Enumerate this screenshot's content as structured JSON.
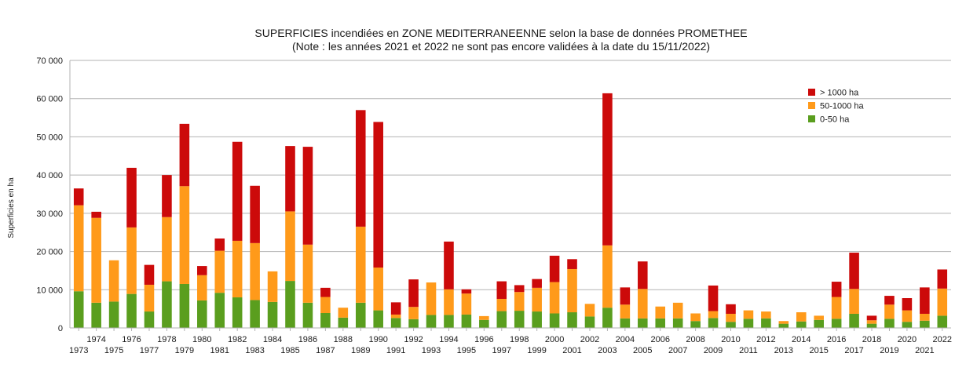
{
  "chart_data": {
    "type": "bar",
    "stacked": true,
    "title": "SUPERFICIES incendiées en ZONE MEDITERRANEENNE selon la base de données PROMETHEE",
    "subtitle": "(Note : les années 2021 et 2022 ne sont pas encore validées à la date du 15/11/2022)",
    "ylabel": "Superficies en ha",
    "xlabel": "",
    "ylim": [
      0,
      70000
    ],
    "yticks": [
      0,
      10000,
      20000,
      30000,
      40000,
      50000,
      60000,
      70000
    ],
    "ytick_labels": [
      "0",
      "10 000",
      "20 000",
      "30 000",
      "40 000",
      "50 000",
      "60 000",
      "70 000"
    ],
    "grid": true,
    "legend_position": "top-right",
    "categories": [
      "1973",
      "1974",
      "1975",
      "1976",
      "1977",
      "1978",
      "1979",
      "1980",
      "1981",
      "1982",
      "1983",
      "1984",
      "1985",
      "1986",
      "1987",
      "1988",
      "1989",
      "1990",
      "1991",
      "1992",
      "1993",
      "1994",
      "1995",
      "1996",
      "1997",
      "1998",
      "1999",
      "2000",
      "2001",
      "2002",
      "2003",
      "2004",
      "2005",
      "2006",
      "2007",
      "2008",
      "2009",
      "2010",
      "2011",
      "2012",
      "2013",
      "2014",
      "2015",
      "2016",
      "2017",
      "2018",
      "2019",
      "2020",
      "2021",
      "2022"
    ],
    "series": [
      {
        "name": "0-50 ha",
        "color": "#5a9e1e",
        "values": [
          9600,
          6600,
          6900,
          8900,
          4300,
          12200,
          11500,
          7200,
          9200,
          8000,
          7300,
          6800,
          12300,
          6600,
          3900,
          2700,
          6600,
          4600,
          2600,
          2300,
          3400,
          3400,
          3500,
          2100,
          4400,
          4500,
          4300,
          3800,
          4100,
          3000,
          5300,
          2500,
          2500,
          2500,
          2500,
          1800,
          2600,
          1600,
          2400,
          2500,
          1100,
          1700,
          2100,
          2400,
          3700,
          1100,
          2400,
          1600,
          1900,
          3200
        ]
      },
      {
        "name": "50-1000 ha",
        "color": "#ff9a1a",
        "values": [
          22500,
          22200,
          10800,
          17400,
          7000,
          16800,
          25600,
          6600,
          11000,
          14800,
          14900,
          8000,
          18200,
          15200,
          4200,
          2600,
          19900,
          11200,
          900,
          3200,
          8500,
          6700,
          5500,
          1000,
          3200,
          4900,
          6200,
          8200,
          11300,
          3300,
          16300,
          3600,
          7700,
          3100,
          4100,
          2000,
          1800,
          2100,
          2200,
          1800,
          700,
          2400,
          1100,
          5700,
          6500,
          900,
          3700,
          3000,
          1800,
          7100
        ]
      },
      {
        "name": "> 1000 ha",
        "color": "#cc0a0a",
        "values": [
          4400,
          1600,
          0,
          15600,
          5200,
          11000,
          16300,
          2400,
          3200,
          25900,
          15000,
          0,
          17100,
          25600,
          2400,
          0,
          30500,
          38100,
          3200,
          7200,
          0,
          12500,
          1100,
          0,
          4600,
          1800,
          2300,
          6900,
          2600,
          0,
          39800,
          4500,
          7200,
          0,
          0,
          0,
          6700,
          2500,
          0,
          0,
          0,
          0,
          0,
          4000,
          9500,
          1200,
          2300,
          3200,
          6900,
          5000
        ]
      }
    ]
  }
}
